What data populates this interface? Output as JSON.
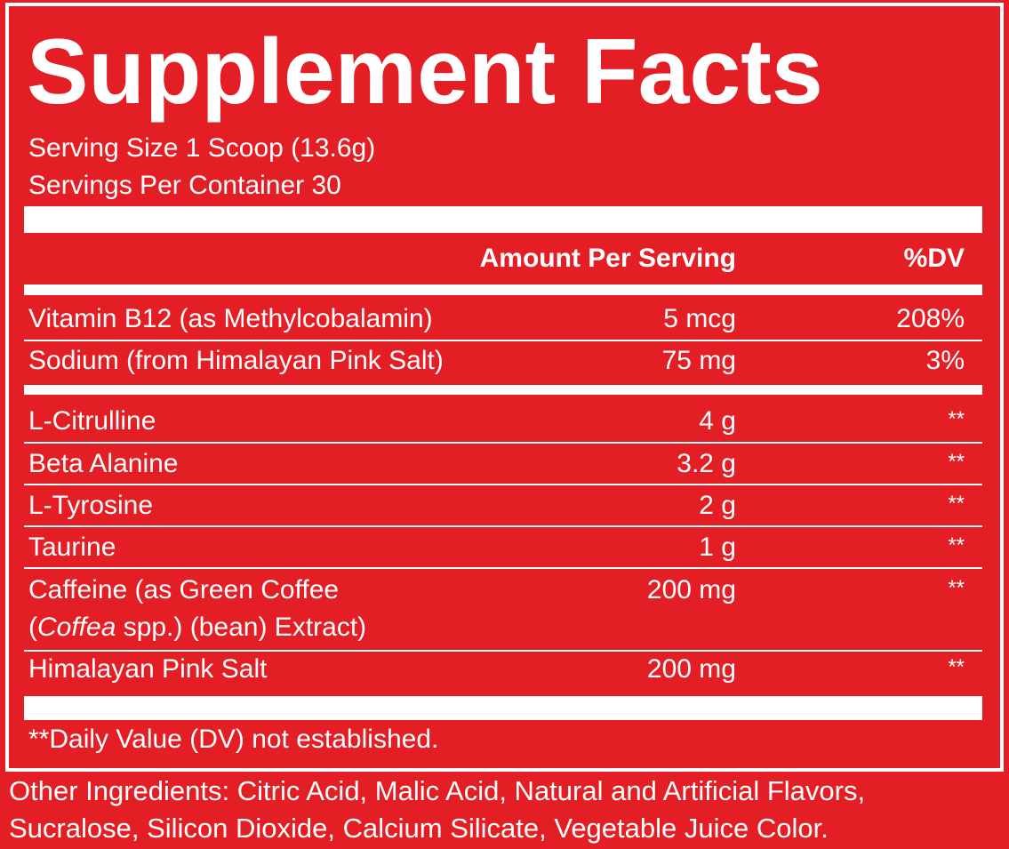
{
  "header": {
    "title": "Supplement Facts",
    "serving_size": "Serving Size 1 Scoop (13.6g)",
    "servings_per_container": "Servings Per Container 30"
  },
  "table": {
    "columns": [
      "Amount Per Serving",
      "%DV"
    ],
    "rows": [
      {
        "name": "Vitamin B12 (as Methylcobalamin)",
        "amount": "5 mcg",
        "dv": "208%"
      },
      {
        "name": "Sodium (from Himalayan Pink Salt)",
        "amount": "75 mg",
        "dv": "3%"
      },
      {
        "name": "L-Citrulline",
        "amount": "4 g",
        "dv": "**"
      },
      {
        "name": "Beta Alanine",
        "amount": "3.2 g",
        "dv": "**"
      },
      {
        "name": "L-Tyrosine",
        "amount": "2 g",
        "dv": "**"
      },
      {
        "name": "Taurine",
        "amount": "1 g",
        "dv": "**"
      },
      {
        "name": "Caffeine (as Green Coffee",
        "name_cont": [
          "(",
          "Coffea",
          " spp.) (bean) Extract)"
        ],
        "amount": "200 mg",
        "dv": "**"
      },
      {
        "name": "Himalayan Pink Salt",
        "amount": "200 mg",
        "dv": "**"
      }
    ]
  },
  "footnote": "**Daily Value (DV) not established.",
  "other_ingredients": [
    "Other Ingredients: Citric Acid, Malic Acid, Natural and Artificial Flavors,",
    "Sucralose, Silicon Dioxide, Calcium Silicate, Vegetable Juice Color."
  ]
}
